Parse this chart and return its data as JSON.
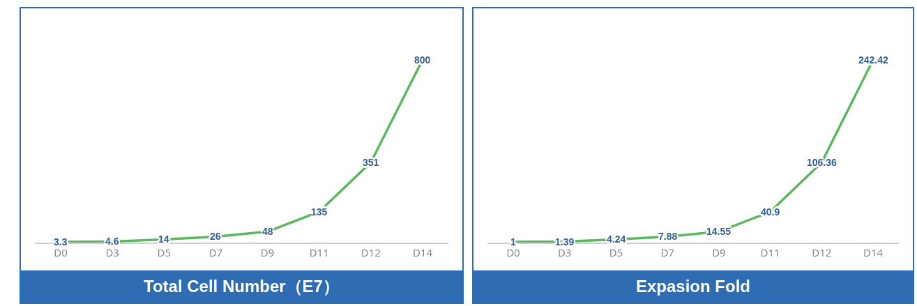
{
  "chart_data": [
    {
      "type": "line",
      "title": "Total Cell Number（E7）",
      "categories": [
        "D0",
        "D3",
        "D5",
        "D7",
        "D9",
        "D11",
        "D12",
        "D14"
      ],
      "series": [
        {
          "color": "#5cb85c",
          "values": [
            3.3,
            4.6,
            14,
            26,
            48,
            135,
            351,
            800
          ]
        }
      ],
      "data_labels": true,
      "line_style": "solid",
      "grid": false
    },
    {
      "type": "line",
      "title": "Expasion Fold",
      "categories": [
        "D0",
        "D3",
        "D5",
        "D7",
        "D9",
        "D11",
        "D12",
        "D14"
      ],
      "series": [
        {
          "color": "#5cb85c",
          "values": [
            1,
            1.39,
            4.24,
            7.88,
            14.55,
            40.9,
            106.36,
            242.42
          ]
        }
      ],
      "data_labels": true,
      "line_style": "solid",
      "grid": false
    }
  ]
}
